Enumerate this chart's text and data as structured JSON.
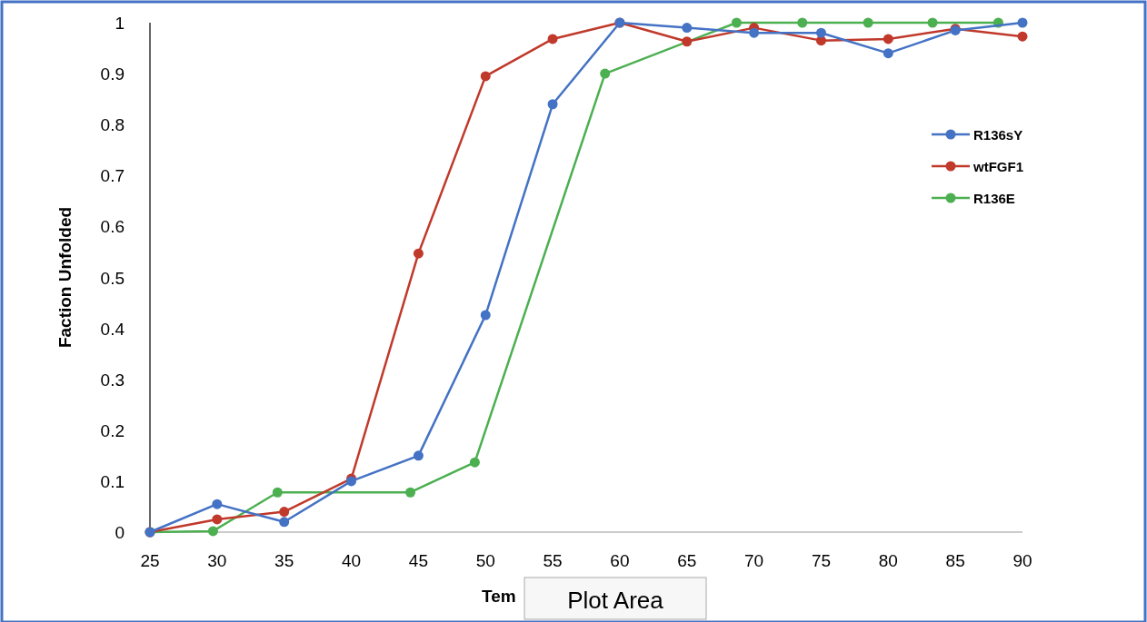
{
  "chart_data": {
    "type": "line",
    "xlabel": "Tem",
    "ylabel": "Faction Unfolded",
    "annotations": [
      "Plot Area"
    ],
    "x": [
      25,
      30,
      35,
      40,
      45,
      50,
      55,
      60,
      65,
      70,
      75,
      80,
      85,
      90
    ],
    "xlim": [
      25,
      90
    ],
    "xticks": [
      25,
      30,
      35,
      40,
      45,
      50,
      55,
      60,
      65,
      70,
      75,
      80,
      85,
      90
    ],
    "ylim": [
      0,
      1
    ],
    "yticks": [
      0,
      0.1,
      0.2,
      0.3,
      0.4,
      0.5,
      0.6,
      0.7,
      0.8,
      0.9,
      1
    ],
    "grid": false,
    "legend": "right",
    "marker": "circle",
    "series": [
      {
        "name": "R136sY",
        "color": "#4472c4",
        "values": [
          0,
          0.055,
          0.02,
          0.1,
          0.15,
          0.426,
          0.84,
          1,
          0.99,
          0.98,
          0.98,
          0.94,
          0.985,
          1
        ]
      },
      {
        "name": "wtFGF1",
        "color": "#c0392b",
        "values": [
          0,
          0.025,
          0.04,
          0.105,
          0.547,
          0.895,
          0.968,
          1,
          0.963,
          0.99,
          0.965,
          0.968,
          0.988,
          0.973
        ]
      },
      {
        "name": "R136E",
        "color": "#4caf50",
        "x": [
          25,
          29.7,
          34.5,
          44.4,
          49.2,
          58.9,
          68.7,
          73.6,
          78.5,
          83.3,
          88.2
        ],
        "values": [
          0,
          0.002,
          0.078,
          0.078,
          0.137,
          0.9,
          1,
          1,
          1,
          1,
          1
        ]
      }
    ]
  }
}
